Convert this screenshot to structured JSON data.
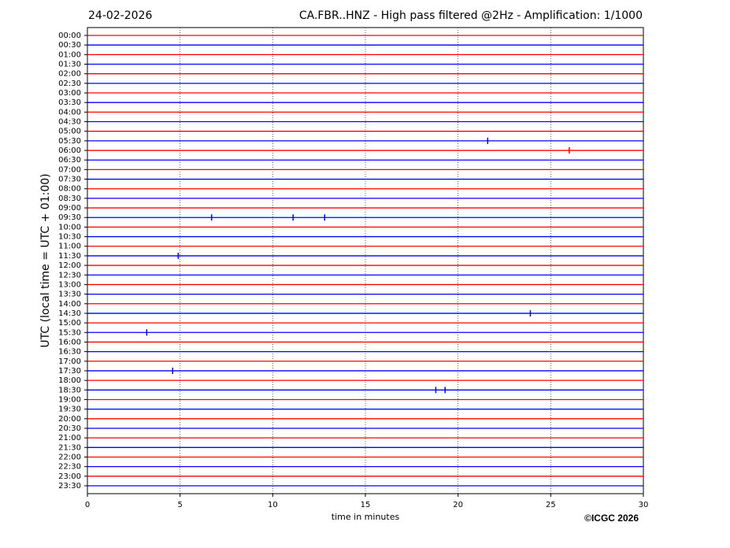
{
  "chart_data": {
    "type": "helicorder",
    "date": "24-02-2026",
    "title": "CA.FBR..HNZ - High pass filtered @2Hz - Amplification: 1/1000",
    "ylabel": "UTC (local time = UTC + 01:00)",
    "xlabel": "time in minutes",
    "copyright": "©ICGC 2026",
    "categories": [
      "00:00",
      "00:30",
      "01:00",
      "01:30",
      "02:00",
      "02:30",
      "03:00",
      "03:30",
      "04:00",
      "04:30",
      "05:00",
      "05:30",
      "06:00",
      "06:30",
      "07:00",
      "07:30",
      "08:00",
      "08:30",
      "09:00",
      "09:30",
      "10:00",
      "10:30",
      "11:00",
      "11:30",
      "12:00",
      "12:30",
      "13:00",
      "13:30",
      "14:00",
      "14:30",
      "15:00",
      "15:30",
      "16:00",
      "16:30",
      "17:00",
      "17:30",
      "18:00",
      "18:30",
      "19:00",
      "19:30",
      "20:00",
      "20:30",
      "21:00",
      "21:30",
      "22:00",
      "22:30",
      "23:00",
      "23:30"
    ],
    "colors": [
      "#ff0000",
      "#0000ff"
    ],
    "xlim": [
      0,
      30
    ],
    "xticks": [
      0,
      5,
      10,
      15,
      20,
      25,
      30
    ],
    "grid": true,
    "events": [
      {
        "row": 11,
        "x": 21.6
      },
      {
        "row": 12,
        "x": 26.0
      },
      {
        "row": 19,
        "x": 6.7
      },
      {
        "row": 19,
        "x": 11.1
      },
      {
        "row": 19,
        "x": 12.8
      },
      {
        "row": 23,
        "x": 4.9
      },
      {
        "row": 29,
        "x": 23.9
      },
      {
        "row": 31,
        "x": 3.2
      },
      {
        "row": 35,
        "x": 4.6
      },
      {
        "row": 37,
        "x": 18.8
      },
      {
        "row": 37,
        "x": 19.3
      }
    ]
  }
}
